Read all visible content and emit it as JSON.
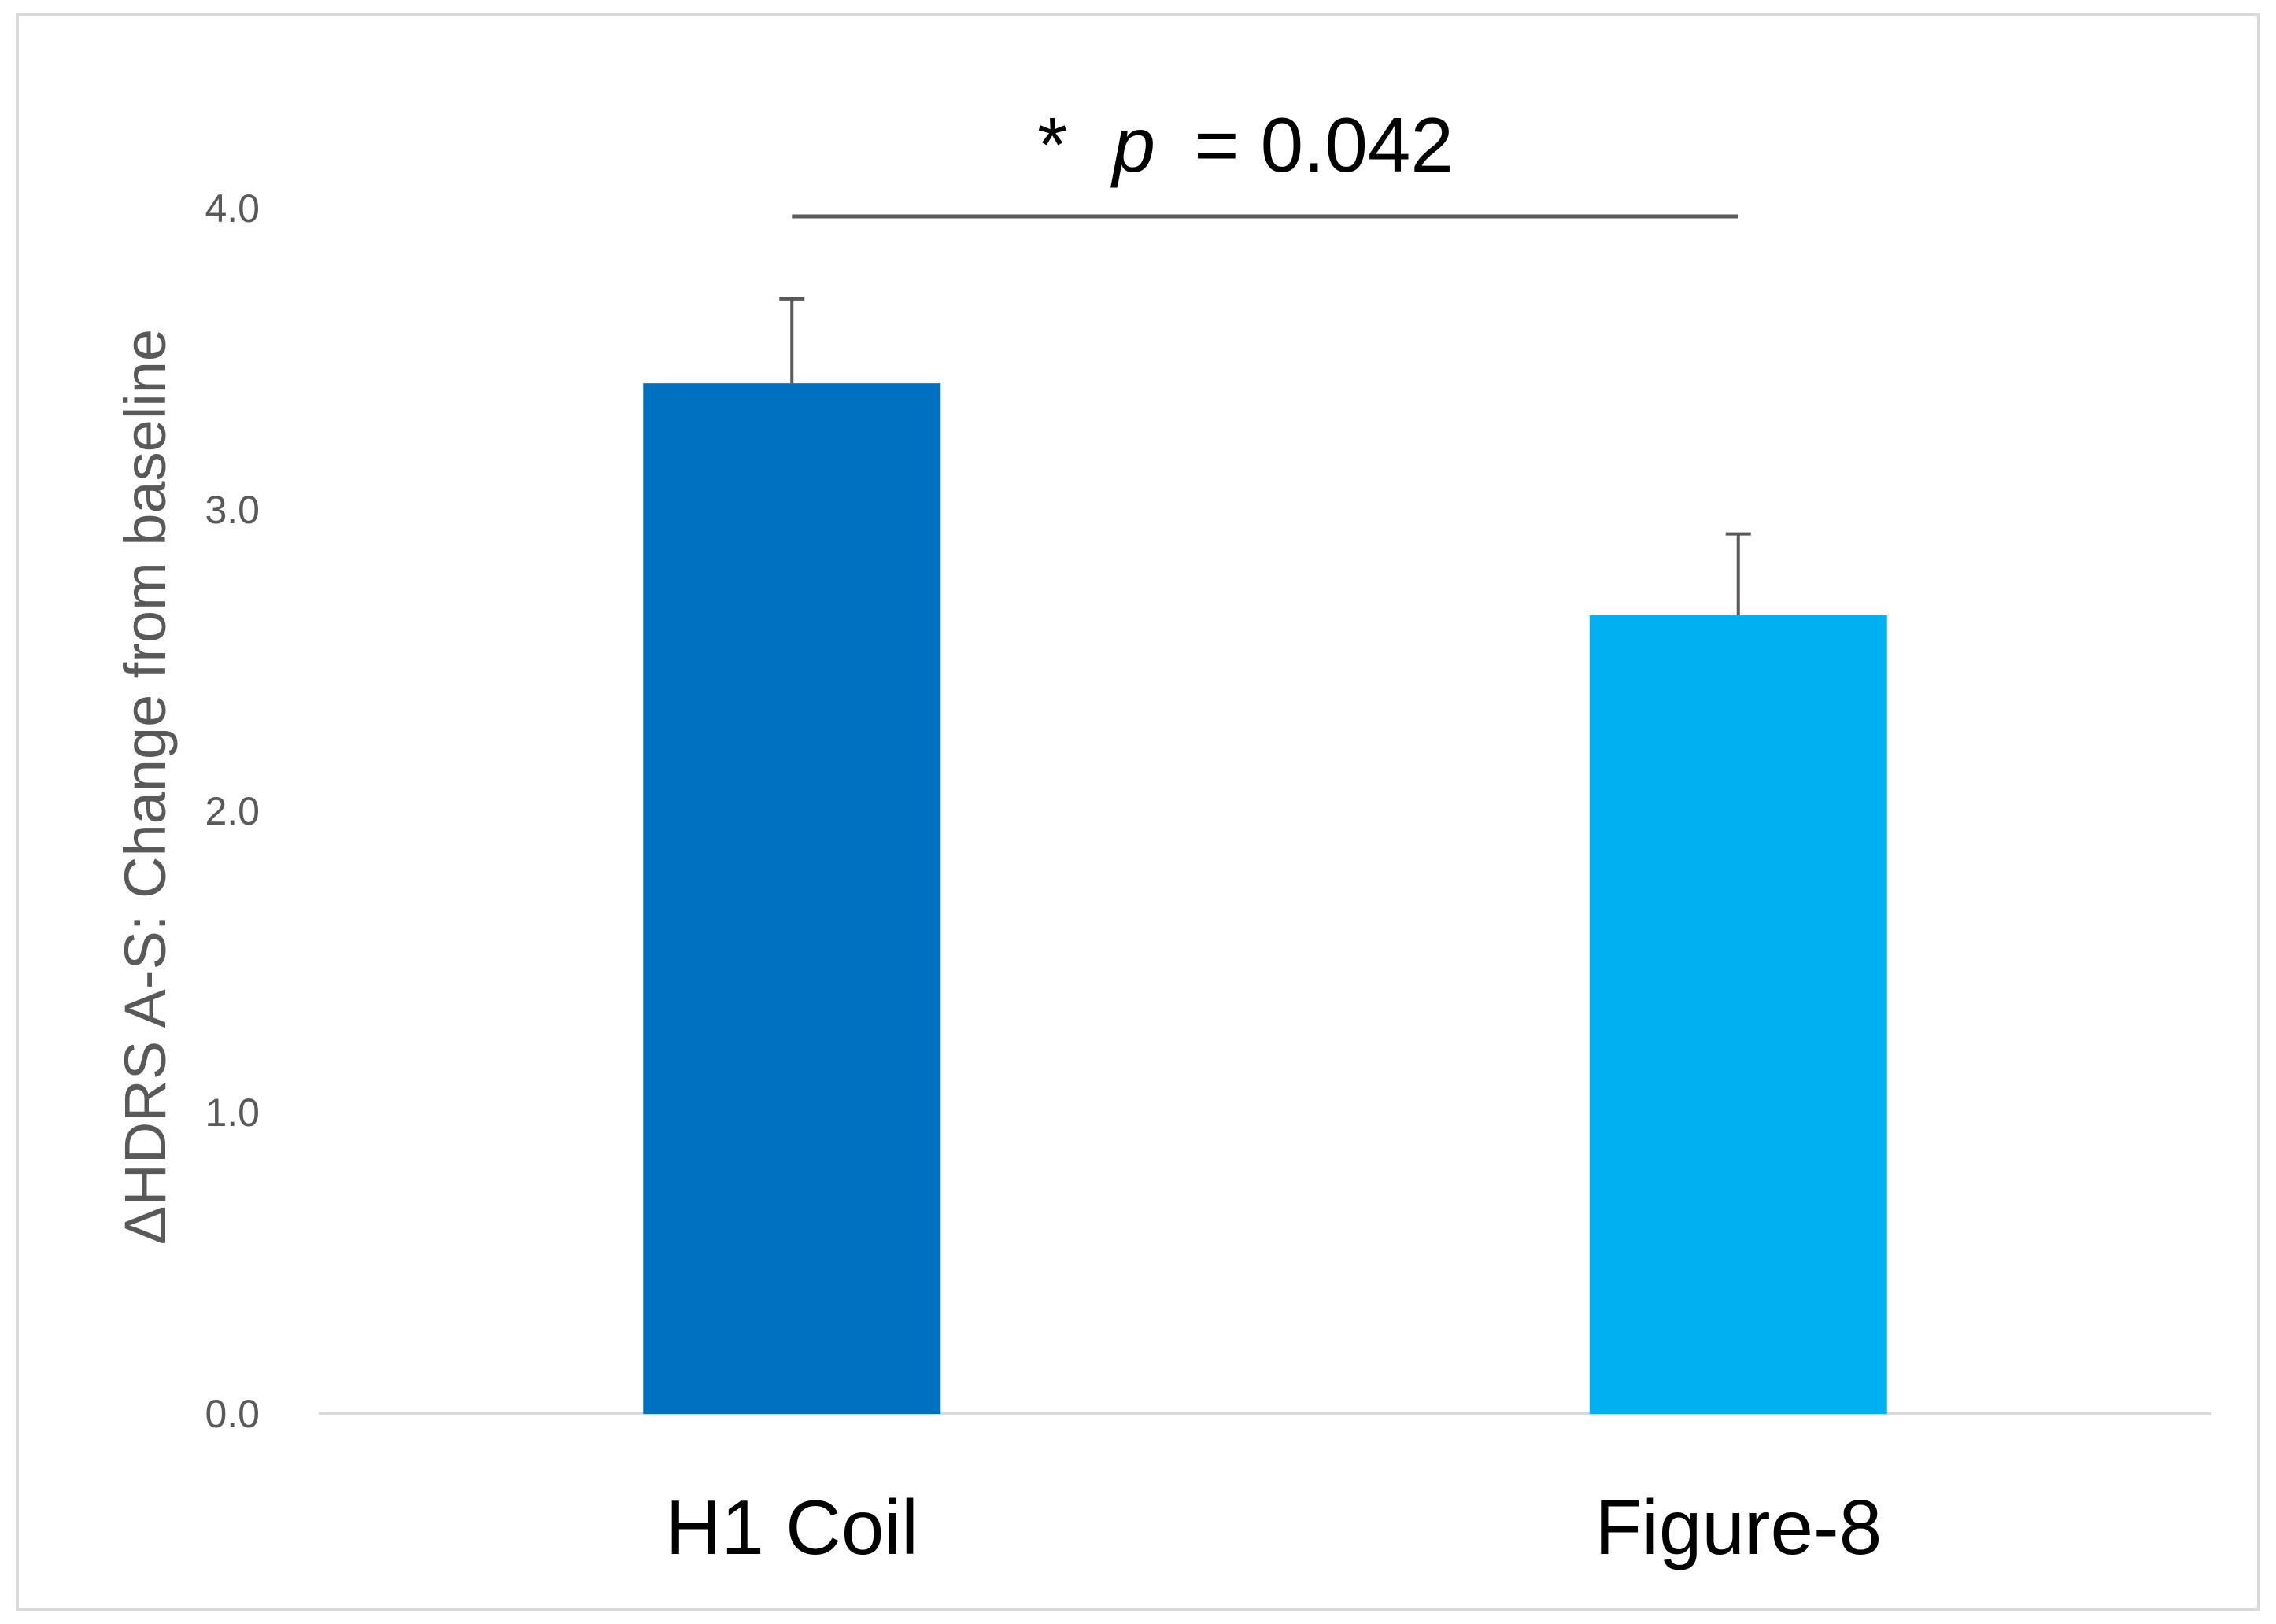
{
  "chart_data": {
    "type": "bar",
    "categories": [
      "H1 Coil",
      "Figure-8"
    ],
    "values": [
      3.42,
      2.65
    ],
    "error_bars": [
      0.28,
      0.27
    ],
    "ylabel": "ΔHDRS A-S: Change from baseline",
    "xlabel": "",
    "ylim": [
      0,
      4
    ],
    "y_ticks": [
      "0.0",
      "1.0",
      "2.0",
      "3.0",
      "4.0"
    ],
    "y_tick_values": [
      0,
      1,
      2,
      3,
      4
    ],
    "bar_colors": [
      "#0070c0",
      "#00b0f0"
    ],
    "grid": false,
    "significance": {
      "star": "*",
      "p_symbol": "p",
      "p_text": "= 0.042",
      "between": [
        0,
        1
      ]
    }
  }
}
